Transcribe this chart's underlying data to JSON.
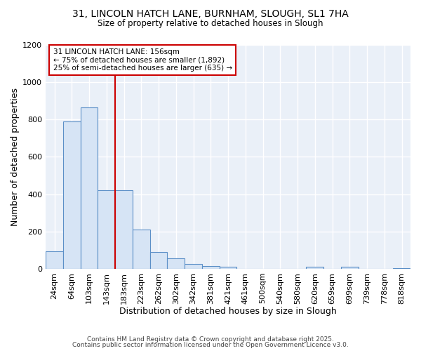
{
  "title": "31, LINCOLN HATCH LANE, BURNHAM, SLOUGH, SL1 7HA",
  "subtitle": "Size of property relative to detached houses in Slough",
  "xlabel": "Distribution of detached houses by size in Slough",
  "ylabel": "Number of detached properties",
  "bar_labels": [
    "24sqm",
    "64sqm",
    "103sqm",
    "143sqm",
    "183sqm",
    "223sqm",
    "262sqm",
    "302sqm",
    "342sqm",
    "381sqm",
    "421sqm",
    "461sqm",
    "500sqm",
    "540sqm",
    "580sqm",
    "620sqm",
    "659sqm",
    "699sqm",
    "739sqm",
    "778sqm",
    "818sqm"
  ],
  "bar_values": [
    95,
    790,
    865,
    420,
    420,
    210,
    90,
    55,
    25,
    15,
    10,
    0,
    0,
    0,
    0,
    10,
    0,
    10,
    0,
    0,
    5
  ],
  "bar_color": "#d6e4f5",
  "bar_edge_color": "#5b8fc7",
  "vline_x": 3.5,
  "vline_color": "#cc0000",
  "annotation_text": "31 LINCOLN HATCH LANE: 156sqm\n← 75% of detached houses are smaller (1,892)\n25% of semi-detached houses are larger (635) →",
  "annotation_box_facecolor": "#ffffff",
  "annotation_box_edgecolor": "#cc0000",
  "ylim": [
    0,
    1200
  ],
  "yticks": [
    0,
    200,
    400,
    600,
    800,
    1000,
    1200
  ],
  "plot_bg_color": "#eaf0f8",
  "fig_bg_color": "#ffffff",
  "grid_color": "#ffffff",
  "footer_line1": "Contains HM Land Registry data © Crown copyright and database right 2025.",
  "footer_line2": "Contains public sector information licensed under the Open Government Licence v3.0."
}
